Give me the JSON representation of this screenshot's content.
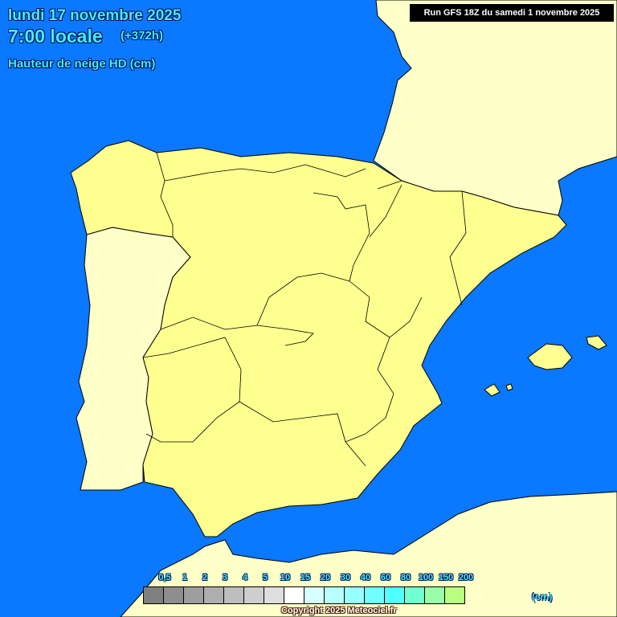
{
  "header": {
    "date": "lundi 17 novembre 2025",
    "time": "7:00 locale",
    "offset": "(+372h)",
    "variable": "Hauteur de neige HD (cm)"
  },
  "run_label": "Run GFS 18Z du samedi 1 novembre 2025",
  "map": {
    "colors": {
      "sea": "#0a78ff",
      "spain": "#ffff90",
      "other_land": "#ffffc8"
    }
  },
  "legend": {
    "labels": [
      "0,5",
      "1",
      "2",
      "3",
      "4",
      "5",
      "10",
      "15",
      "20",
      "30",
      "40",
      "60",
      "80",
      "100",
      "150",
      "200"
    ],
    "colors": [
      "#808080",
      "#8e8e8e",
      "#9e9e9e",
      "#aeaeae",
      "#bebebe",
      "#cecece",
      "#dedede",
      "#ffffff",
      "#d8ffff",
      "#b8ffff",
      "#98ffff",
      "#70ffff",
      "#50ffff",
      "#70ffd0",
      "#98ffa8",
      "#b8ff80"
    ],
    "unit": "(cm)"
  },
  "copyright": "Copyright 2025 Meteociel.fr"
}
